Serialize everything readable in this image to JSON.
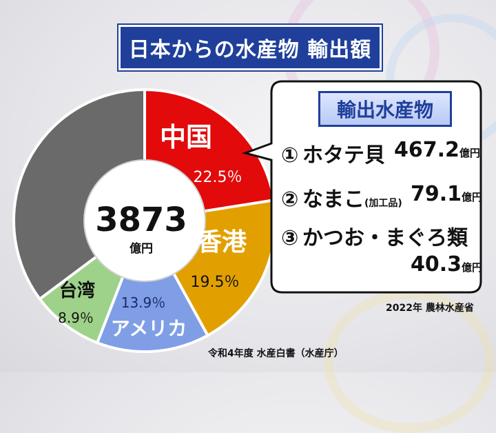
{
  "title": "日本からの水産物 輸出額",
  "chart_data": {
    "type": "pie",
    "total": {
      "value": "3873",
      "unit": "億円"
    },
    "slices": [
      {
        "label": "中国",
        "value": 22.5,
        "display": "22.5％",
        "color": "#e20a0a"
      },
      {
        "label": "香港",
        "value": 19.5,
        "display": "19.5％",
        "color": "#e2a000"
      },
      {
        "label": "アメリカ",
        "value": 13.9,
        "display": "13.9％",
        "color": "#7f9ee6"
      },
      {
        "label": "台湾",
        "value": 8.9,
        "display": "8.9％",
        "color": "#9ed189"
      },
      {
        "label": "",
        "value": 35.2,
        "display": "",
        "color": "#6a6a6a"
      }
    ]
  },
  "callout": {
    "title": "輸出水産物",
    "items": [
      {
        "rank": "①",
        "name": "ホタテ貝",
        "note": "",
        "value": "467.2",
        "unit": "億円"
      },
      {
        "rank": "②",
        "name": "なまこ",
        "note": "(加工品)",
        "value": "79.1",
        "unit": "億円"
      },
      {
        "rank": "③",
        "name": "かつお・まぐろ類",
        "note": "",
        "value": "40.3",
        "unit": "億円"
      }
    ],
    "source": "2022年 農林水産省"
  },
  "source": "令和4年度 水産白書（水産庁）"
}
